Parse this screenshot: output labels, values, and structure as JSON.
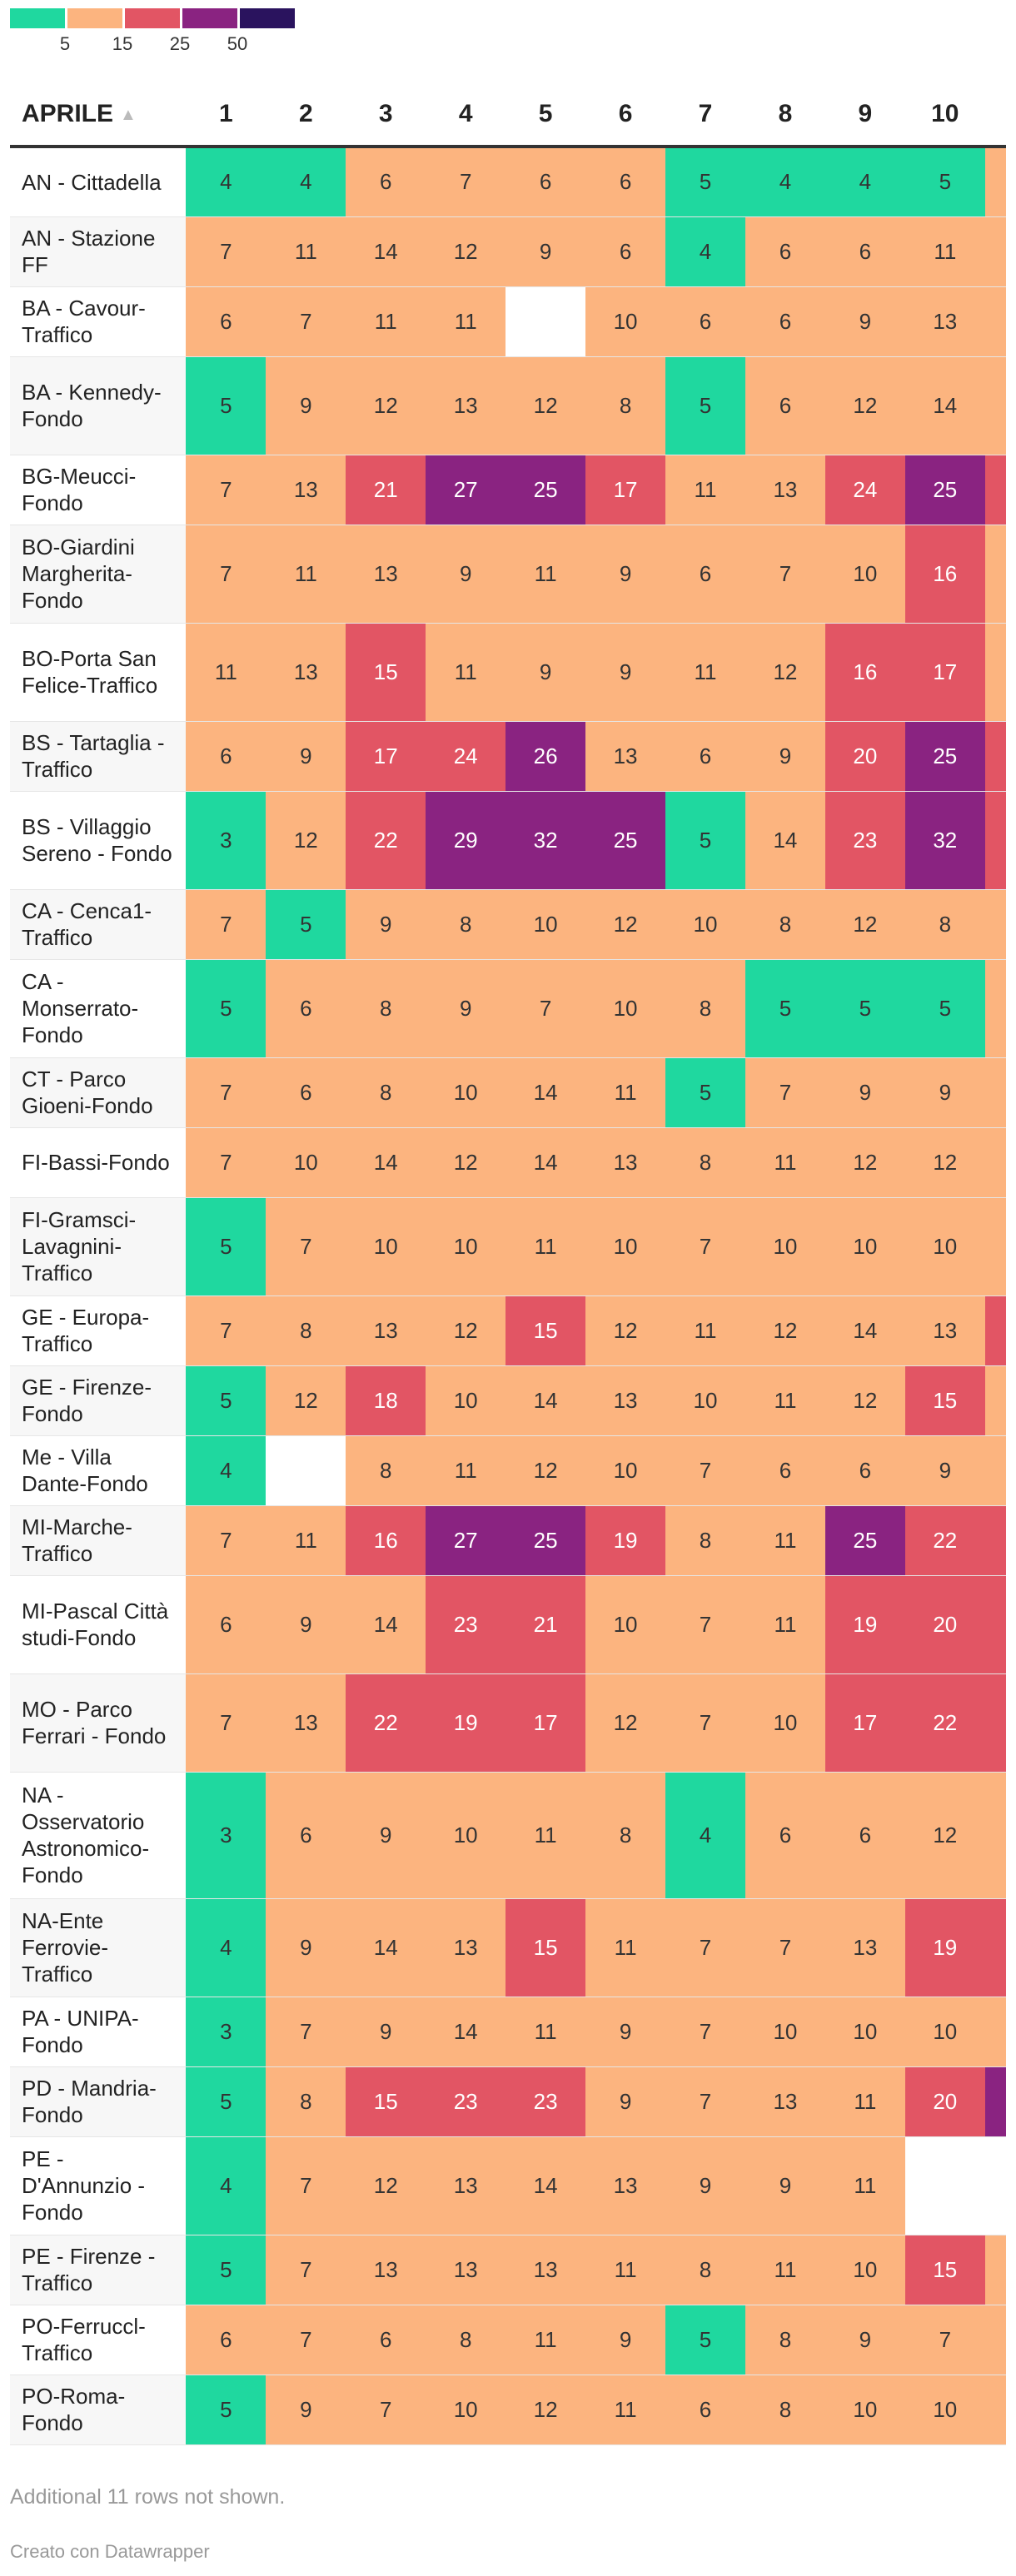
{
  "legend": {
    "swatch_colors": [
      "#1fd89f",
      "#fcb47f",
      "#e25564",
      "#8a2381",
      "#2a135e"
    ],
    "ticks": [
      "5",
      "15",
      "25",
      "50"
    ]
  },
  "colors": {
    "teal": "#1fd89f",
    "peach": "#fcb47f",
    "red": "#e25564",
    "purple": "#8a2381",
    "dark": "#2a135e",
    "empty": "#ffffff"
  },
  "chart_data": {
    "type": "heatmap",
    "header_label": "APRILE",
    "columns": [
      "1",
      "2",
      "3",
      "4",
      "5",
      "6",
      "7",
      "8",
      "9",
      "10"
    ],
    "rows": [
      {
        "label": "AN - Cittadella",
        "values": [
          4,
          4,
          6,
          7,
          6,
          6,
          5,
          4,
          4,
          5
        ],
        "extra": null
      },
      {
        "label": "AN - Stazione FF",
        "values": [
          7,
          11,
          14,
          12,
          9,
          6,
          4,
          6,
          6,
          11
        ],
        "extra": null
      },
      {
        "label": "BA - Cavour-Traffico",
        "values": [
          6,
          7,
          11,
          11,
          null,
          10,
          6,
          6,
          9,
          13
        ],
        "extra": null
      },
      {
        "label": "BA - Kennedy-Fondo",
        "values": [
          5,
          9,
          12,
          13,
          12,
          8,
          5,
          6,
          12,
          14
        ],
        "extra": null
      },
      {
        "label": "BG-Meucci-Fondo",
        "values": [
          7,
          13,
          21,
          27,
          25,
          17,
          11,
          13,
          24,
          25
        ],
        "extra": "red"
      },
      {
        "label": "BO-Giardini Margherita-Fondo",
        "values": [
          7,
          11,
          13,
          9,
          11,
          9,
          6,
          7,
          10,
          16
        ],
        "extra": null
      },
      {
        "label": "BO-Porta San Felice-Traffico",
        "values": [
          11,
          13,
          15,
          11,
          9,
          9,
          11,
          12,
          16,
          17
        ],
        "extra": null
      },
      {
        "label": "BS - Tartaglia - Traffico",
        "values": [
          6,
          9,
          17,
          24,
          26,
          13,
          6,
          9,
          20,
          25
        ],
        "extra": "red"
      },
      {
        "label": "BS - Villaggio Sereno - Fondo",
        "values": [
          3,
          12,
          22,
          29,
          32,
          25,
          5,
          14,
          23,
          32
        ],
        "extra": "red"
      },
      {
        "label": "CA - Cenca1-Traffico",
        "values": [
          7,
          5,
          9,
          8,
          10,
          12,
          10,
          8,
          12,
          8
        ],
        "extra": null
      },
      {
        "label": "CA - Monserrato-Fondo",
        "values": [
          5,
          6,
          8,
          9,
          7,
          10,
          8,
          5,
          5,
          5
        ],
        "extra": null
      },
      {
        "label": "CT - Parco Gioeni-Fondo",
        "values": [
          7,
          6,
          8,
          10,
          14,
          11,
          5,
          7,
          9,
          9
        ],
        "extra": null
      },
      {
        "label": "FI-Bassi-Fondo",
        "values": [
          7,
          10,
          14,
          12,
          14,
          13,
          8,
          11,
          12,
          12
        ],
        "extra": null
      },
      {
        "label": "FI-Gramsci-Lavagnini-Traffico",
        "values": [
          5,
          7,
          10,
          10,
          11,
          10,
          7,
          10,
          10,
          10
        ],
        "extra": null
      },
      {
        "label": "GE - Europa-Traffico",
        "values": [
          7,
          8,
          13,
          12,
          15,
          12,
          11,
          12,
          14,
          13
        ],
        "extra": "red"
      },
      {
        "label": "GE - Firenze-Fondo",
        "values": [
          5,
          12,
          18,
          10,
          14,
          13,
          10,
          11,
          12,
          15
        ],
        "extra": null
      },
      {
        "label": "Me - Villa Dante-Fondo",
        "values": [
          4,
          null,
          8,
          11,
          12,
          10,
          7,
          6,
          6,
          9
        ],
        "extra": null
      },
      {
        "label": "MI-Marche-Traffico",
        "values": [
          7,
          11,
          16,
          27,
          25,
          19,
          8,
          11,
          25,
          22
        ],
        "extra": "red"
      },
      {
        "label": "MI-Pascal Città studi-Fondo",
        "values": [
          6,
          9,
          14,
          23,
          21,
          10,
          7,
          11,
          19,
          20
        ],
        "extra": "red"
      },
      {
        "label": "MO - Parco Ferrari - Fondo",
        "values": [
          7,
          13,
          22,
          19,
          17,
          12,
          7,
          10,
          17,
          22
        ],
        "extra": "red"
      },
      {
        "label": "NA - Osservatorio Astronomico-Fondo",
        "values": [
          3,
          6,
          9,
          10,
          11,
          8,
          4,
          6,
          6,
          12
        ],
        "extra": null
      },
      {
        "label": "NA-Ente Ferrovie-Traffico",
        "values": [
          4,
          9,
          14,
          13,
          15,
          11,
          7,
          7,
          13,
          19
        ],
        "extra": "red"
      },
      {
        "label": "PA - UNIPA-Fondo",
        "values": [
          3,
          7,
          9,
          14,
          11,
          9,
          7,
          10,
          10,
          10
        ],
        "extra": null
      },
      {
        "label": "PD - Mandria-Fondo",
        "values": [
          5,
          8,
          15,
          23,
          23,
          9,
          7,
          13,
          11,
          20
        ],
        "extra": "purple"
      },
      {
        "label": "PE - D'Annunzio - Fondo",
        "values": [
          4,
          7,
          12,
          13,
          14,
          13,
          9,
          9,
          11,
          null
        ],
        "extra": "empty"
      },
      {
        "label": "PE - Firenze - Traffico",
        "values": [
          5,
          7,
          13,
          13,
          13,
          11,
          8,
          11,
          10,
          15
        ],
        "extra": null
      },
      {
        "label": "PO-Ferruccl-Traffico",
        "values": [
          6,
          7,
          6,
          8,
          11,
          9,
          5,
          8,
          9,
          7
        ],
        "extra": null
      },
      {
        "label": "PO-Roma-Fondo",
        "values": [
          5,
          9,
          7,
          10,
          12,
          11,
          6,
          8,
          10,
          10
        ],
        "extra": null
      }
    ]
  },
  "footer": {
    "note": "Additional 11 rows not shown.",
    "credit": "Creato con Datawrapper"
  }
}
